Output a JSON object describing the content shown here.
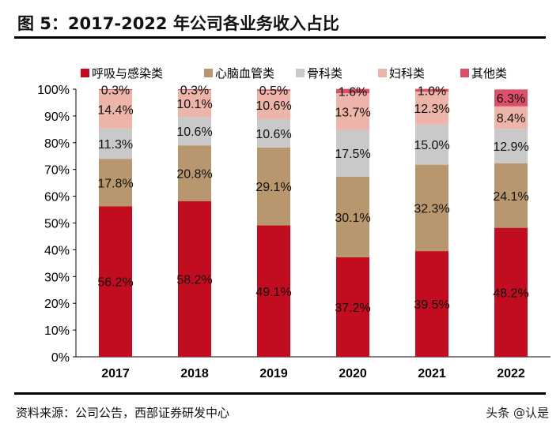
{
  "title": "图 5：2017-2022 年公司各业务收入占比",
  "source": "资料来源：公司公告，西部证券研发中心",
  "watermark": "头条 @认是",
  "chart_data": {
    "type": "stacked-bar",
    "categories": [
      "2017",
      "2018",
      "2019",
      "2020",
      "2021",
      "2022"
    ],
    "ylim": [
      0,
      100
    ],
    "yticks": [
      "0%",
      "10%",
      "20%",
      "30%",
      "40%",
      "50%",
      "60%",
      "70%",
      "80%",
      "90%",
      "100%"
    ],
    "legend_position": "top",
    "grid": false,
    "series": [
      {
        "name": "呼吸与感染类",
        "color": "#C10D1F",
        "values": [
          56.2,
          58.2,
          49.1,
          37.2,
          39.5,
          48.2
        ]
      },
      {
        "name": "心脑血管类",
        "color": "#B9976E",
        "values": [
          17.8,
          20.8,
          29.1,
          30.1,
          32.3,
          24.1
        ]
      },
      {
        "name": "骨科类",
        "color": "#C9C9C9",
        "values": [
          11.3,
          10.6,
          10.6,
          17.5,
          15.0,
          12.9
        ]
      },
      {
        "name": "妇科类",
        "color": "#EDB5A9",
        "values": [
          14.4,
          10.1,
          10.6,
          13.7,
          12.3,
          8.4
        ]
      },
      {
        "name": "其他类",
        "color": "#DD4F66",
        "values": [
          0.3,
          0.3,
          0.5,
          1.6,
          1.0,
          6.3
        ]
      }
    ]
  }
}
